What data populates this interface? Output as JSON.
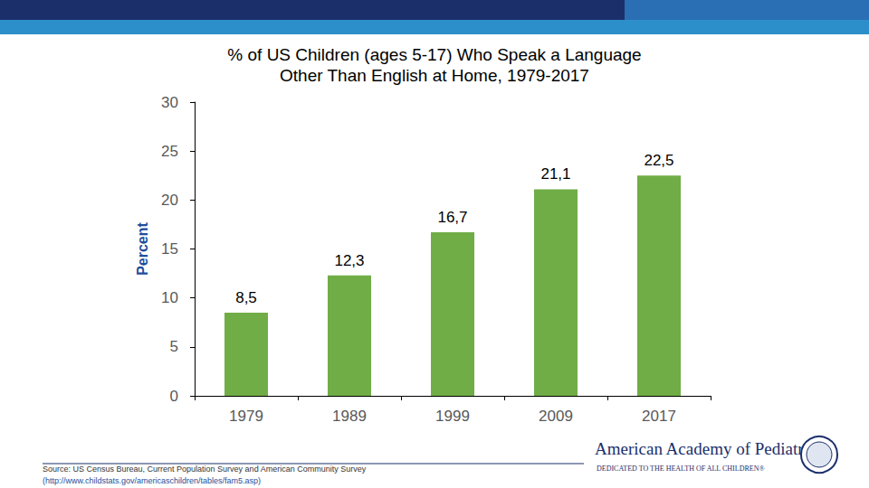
{
  "chart_data": {
    "type": "bar",
    "title": "% of US Children (ages 5-17) Who Speak a Language\nOther Than English at Home, 1979-2017",
    "y_label": "Percent",
    "categories": [
      "1979",
      "1989",
      "1999",
      "2009",
      "2017"
    ],
    "values": [
      8.5,
      12.3,
      16.7,
      21.1,
      22.5
    ],
    "value_labels": [
      "8,5",
      "12,3",
      "16,7",
      "21,1",
      "22,5"
    ],
    "color": "#70ad47",
    "ylim": [
      0,
      30
    ],
    "yticks": [
      0,
      5,
      10,
      15,
      20,
      25,
      30
    ],
    "grid": false,
    "data_labels": true,
    "annotations": [
      "Source: US Census Bureau, Current Population Survey and American Community Survey",
      "(http://www.childstats.gov/americaschildren/tables/fam5.asp)",
      "American Academy of Pediatrics",
      "DEDICATED TO THE HEALTH OF ALL CHILDREN®"
    ]
  }
}
